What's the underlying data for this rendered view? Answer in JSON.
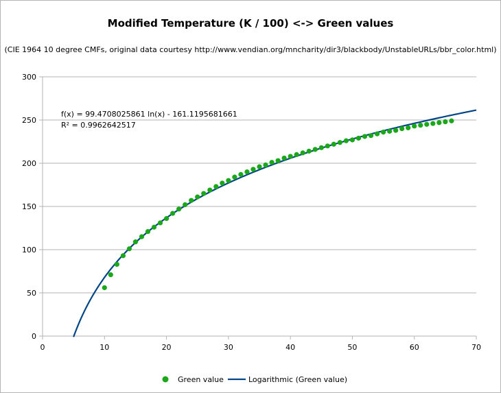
{
  "chart_data": {
    "type": "scatter",
    "title": "Modified Temperature (K / 100) <-> Green values",
    "subtitle": "(CIE 1964 10 degree CMFs, original data courtesy http://www.vendian.org/mncharity/dir3/blackbody/UnstableURLs/bbr_color.html)",
    "xlabel": "",
    "ylabel": "",
    "xlim": [
      0,
      70
    ],
    "ylim": [
      0,
      300
    ],
    "x_ticks": [
      "0",
      "10",
      "20",
      "30",
      "40",
      "50",
      "60",
      "70"
    ],
    "y_ticks": [
      "0",
      "50",
      "100",
      "150",
      "200",
      "250",
      "300"
    ],
    "grid": "horizontal",
    "series": [
      {
        "name": "Green value",
        "kind": "points",
        "color": "#1aa81a",
        "x": [
          10,
          11,
          12,
          13,
          14,
          15,
          16,
          17,
          18,
          19,
          20,
          21,
          22,
          23,
          24,
          25,
          26,
          27,
          28,
          29,
          30,
          31,
          32,
          33,
          34,
          35,
          36,
          37,
          38,
          39,
          40,
          41,
          42,
          43,
          44,
          45,
          46,
          47,
          48,
          49,
          50,
          51,
          52,
          53,
          54,
          55,
          56,
          57,
          58,
          59,
          60,
          61,
          62,
          63,
          64,
          65,
          66
        ],
        "y": [
          56,
          71,
          83,
          93,
          101,
          109,
          115,
          121,
          126,
          131,
          136,
          142,
          147,
          152,
          157,
          161,
          165,
          169,
          173,
          177,
          180,
          184,
          187,
          190,
          193,
          196,
          198,
          201,
          203,
          206,
          208,
          210,
          212,
          214,
          216,
          218,
          220,
          222,
          224,
          226,
          227,
          229,
          231,
          232,
          234,
          236,
          237,
          238,
          240,
          241,
          243,
          244,
          245,
          246,
          247,
          248,
          249
        ]
      },
      {
        "name": "Logarithmic (Green value)",
        "kind": "trendline",
        "color": "#004586",
        "equation": "f(x) = 99.4708025861 ln(x) - 161.1195681661",
        "a": 99.4708025861,
        "b": -161.1195681661,
        "x_range": [
          5,
          70
        ]
      }
    ],
    "r_squared": "R² = 0.9962642517",
    "legend": {
      "position": "bottom-center",
      "entries": [
        "Green value",
        "Logarithmic (Green value)"
      ]
    }
  }
}
